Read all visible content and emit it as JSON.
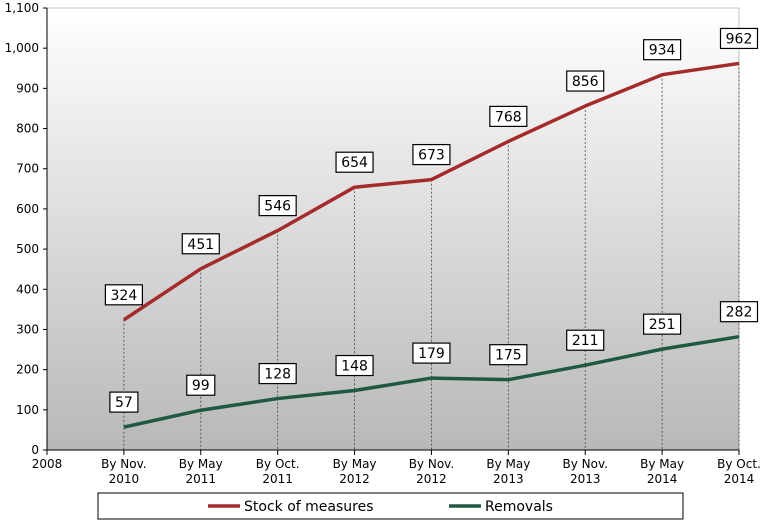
{
  "chart_data": {
    "type": "line",
    "title": "",
    "xlabel": "",
    "ylabel": "",
    "ylim": [
      0,
      1100
    ],
    "y_ticks": [
      0,
      100,
      200,
      300,
      400,
      500,
      600,
      700,
      800,
      900,
      1000,
      1100
    ],
    "y_tick_labels": [
      "0",
      "100",
      "200",
      "300",
      "400",
      "500",
      "600",
      "700",
      "800",
      "900",
      "1,000",
      "1,100"
    ],
    "x_origin_label": "2008",
    "categories": [
      [
        "By Nov.",
        "2010"
      ],
      [
        "By May",
        "2011"
      ],
      [
        "By Oct.",
        "2011"
      ],
      [
        "By May",
        "2012"
      ],
      [
        "By Nov.",
        "2012"
      ],
      [
        "By May",
        "2013"
      ],
      [
        "By Nov.",
        "2013"
      ],
      [
        "By May",
        "2014"
      ],
      [
        "By Oct.",
        "2014"
      ]
    ],
    "series": [
      {
        "name": "Stock of measures",
        "color": "#a52a2a",
        "values": [
          324,
          451,
          546,
          654,
          673,
          768,
          856,
          934,
          962
        ]
      },
      {
        "name": "Removals",
        "color": "#1f5a40",
        "values": [
          57,
          99,
          128,
          148,
          179,
          175,
          211,
          251,
          282
        ]
      }
    ],
    "grid": "vertical-dotted",
    "legend_position": "bottom"
  }
}
